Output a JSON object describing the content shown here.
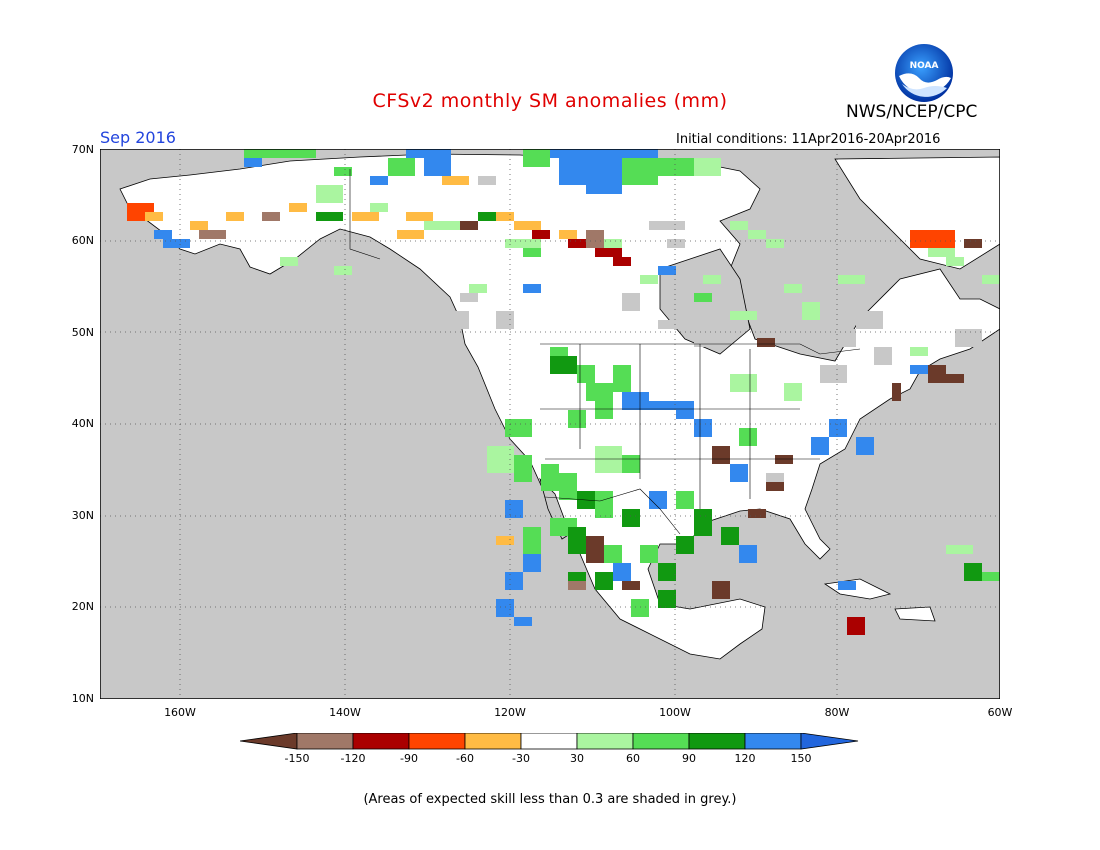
{
  "header": {
    "title": "CFSv2 monthly SM anomalies (mm)",
    "agency": "NWS/NCEP/CPC",
    "month": "Sep 2016",
    "initial_conditions": "Initial conditions: 11Apr2016-20Apr2016"
  },
  "logo": {
    "text": "NOAA",
    "icon": "noaa-logo-icon"
  },
  "map": {
    "lat_labels": [
      "70N",
      "60N",
      "50N",
      "40N",
      "30N",
      "20N",
      "10N"
    ],
    "lon_labels": [
      "160W",
      "140W",
      "120W",
      "100W",
      "80W",
      "60W"
    ],
    "colors": {
      "grey": "#c8c8c8",
      "land": "#ffffff",
      "coast": "#000000"
    }
  },
  "colorbar": {
    "labels": [
      "-150",
      "-120",
      "-90",
      "-60",
      "-30",
      "30",
      "60",
      "90",
      "120",
      "150"
    ],
    "colors": [
      "#6b3a2a",
      "#a07868",
      "#aa0000",
      "#ff4400",
      "#ffbb44",
      "#ffffff",
      "#aaf5a0",
      "#55dd55",
      "#119911",
      "#3388ee",
      "#2266dd"
    ]
  },
  "footnote": "(Areas of expected skill less than 0.3 are shaded in grey.)"
}
